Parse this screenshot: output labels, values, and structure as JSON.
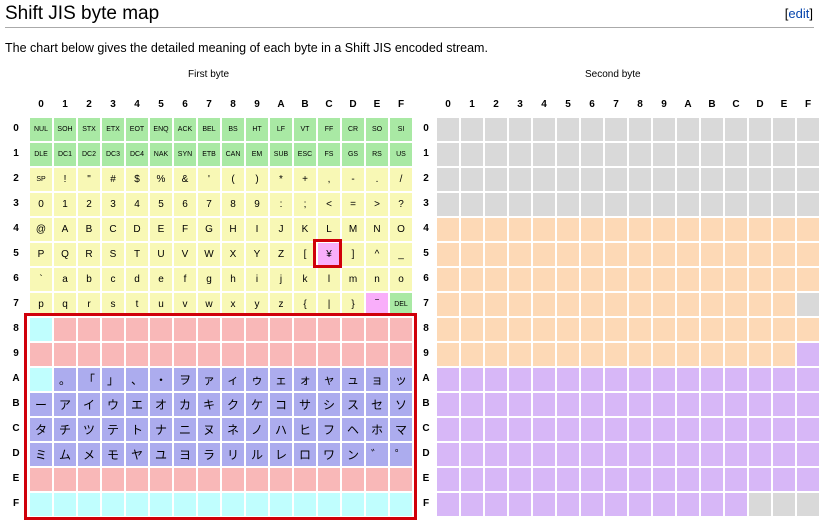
{
  "page": {
    "title": "Shift JIS byte map",
    "edit_open": "[",
    "edit_label": "edit",
    "edit_close": "]",
    "intro": "The chart below gives the detailed meaning of each byte in a Shift JIS encoded stream."
  },
  "first_byte": {
    "caption": "First byte",
    "col_headers": [
      "0",
      "1",
      "2",
      "3",
      "4",
      "5",
      "6",
      "7",
      "8",
      "9",
      "A",
      "B",
      "C",
      "D",
      "E",
      "F"
    ],
    "row_headers": [
      "0",
      "1",
      "2",
      "3",
      "4",
      "5",
      "6",
      "7",
      "8",
      "9",
      "A",
      "B",
      "C",
      "D",
      "E",
      "F"
    ],
    "rows": [
      {
        "cells": [
          "NUL",
          "SOH",
          "STX",
          "ETX",
          "EOT",
          "ENQ",
          "ACK",
          "BEL",
          "BS",
          "HT",
          "LF",
          "VT",
          "FF",
          "CR",
          "SO",
          "SI"
        ],
        "colors": "gggggggggggggggg"
      },
      {
        "cells": [
          "DLE",
          "DC1",
          "DC2",
          "DC3",
          "DC4",
          "NAK",
          "SYN",
          "ETB",
          "CAN",
          "EM",
          "SUB",
          "ESC",
          "FS",
          "GS",
          "RS",
          "US"
        ],
        "colors": "gggggggggggggggg"
      },
      {
        "cells": [
          "SP",
          "!",
          "\"",
          "#",
          "$",
          "%",
          "&",
          "'",
          "(",
          ")",
          "*",
          "+",
          ",",
          "-",
          ".",
          "/"
        ],
        "colors": "yyyyyyyyyyyyyyyy"
      },
      {
        "cells": [
          "0",
          "1",
          "2",
          "3",
          "4",
          "5",
          "6",
          "7",
          "8",
          "9",
          ":",
          ";",
          "<",
          "=",
          ">",
          "?"
        ],
        "colors": "yyyyyyyyyyyyyyyy"
      },
      {
        "cells": [
          "@",
          "A",
          "B",
          "C",
          "D",
          "E",
          "F",
          "G",
          "H",
          "I",
          "J",
          "K",
          "L",
          "M",
          "N",
          "O"
        ],
        "colors": "yyyyyyyyyyyyyyyy"
      },
      {
        "cells": [
          "P",
          "Q",
          "R",
          "S",
          "T",
          "U",
          "V",
          "W",
          "X",
          "Y",
          "Z",
          "[",
          "¥",
          "]",
          "^",
          "_"
        ],
        "colors": "yyyyyyyyyyyymyyy"
      },
      {
        "cells": [
          "`",
          "a",
          "b",
          "c",
          "d",
          "e",
          "f",
          "g",
          "h",
          "i",
          "j",
          "k",
          "l",
          "m",
          "n",
          "o"
        ],
        "colors": "yyyyyyyyyyyyyyyy"
      },
      {
        "cells": [
          "p",
          "q",
          "r",
          "s",
          "t",
          "u",
          "v",
          "w",
          "x",
          "y",
          "z",
          "{",
          "|",
          "}",
          "‾",
          "DEL"
        ],
        "colors": "yyyyyyyyyyyyyymg"
      },
      {
        "cells": [
          "",
          "",
          "",
          "",
          "",
          "",
          "",
          "",
          "",
          "",
          "",
          "",
          "",
          "",
          "",
          ""
        ],
        "colors": "crrrrrrrrrrrrrrr"
      },
      {
        "cells": [
          "",
          "",
          "",
          "",
          "",
          "",
          "",
          "",
          "",
          "",
          "",
          "",
          "",
          "",
          "",
          ""
        ],
        "colors": "rrrrrrrrrrrrrrrr"
      },
      {
        "cells": [
          "",
          "。",
          "「",
          "」",
          "、",
          "・",
          "ヲ",
          "ァ",
          "ィ",
          "ゥ",
          "ェ",
          "ォ",
          "ャ",
          "ュ",
          "ョ",
          "ッ"
        ],
        "colors": "cbbbbbbbbbbbbbbb"
      },
      {
        "cells": [
          "ー",
          "ア",
          "イ",
          "ウ",
          "エ",
          "オ",
          "カ",
          "キ",
          "ク",
          "ケ",
          "コ",
          "サ",
          "シ",
          "ス",
          "セ",
          "ソ"
        ],
        "colors": "bbbbbbbbbbbbbbbb"
      },
      {
        "cells": [
          "タ",
          "チ",
          "ツ",
          "テ",
          "ト",
          "ナ",
          "ニ",
          "ヌ",
          "ネ",
          "ノ",
          "ハ",
          "ヒ",
          "フ",
          "ヘ",
          "ホ",
          "マ"
        ],
        "colors": "bbbbbbbbbbbbbbbb"
      },
      {
        "cells": [
          "ミ",
          "ム",
          "メ",
          "モ",
          "ヤ",
          "ユ",
          "ヨ",
          "ラ",
          "リ",
          "ル",
          "レ",
          "ロ",
          "ワ",
          "ン",
          "゛",
          "゜"
        ],
        "colors": "bbbbbbbbbbbbbbbb"
      },
      {
        "cells": [
          "",
          "",
          "",
          "",
          "",
          "",
          "",
          "",
          "",
          "",
          "",
          "",
          "",
          "",
          "",
          ""
        ],
        "colors": "rrrrrrrrrrrrrrrr"
      },
      {
        "cells": [
          "",
          "",
          "",
          "",
          "",
          "",
          "",
          "",
          "",
          "",
          "",
          "",
          "",
          "",
          "",
          ""
        ],
        "colors": "cccccccccccccccc"
      }
    ]
  },
  "second_byte": {
    "caption": "Second byte",
    "col_headers": [
      "0",
      "1",
      "2",
      "3",
      "4",
      "5",
      "6",
      "7",
      "8",
      "9",
      "A",
      "B",
      "C",
      "D",
      "E",
      "F"
    ],
    "row_headers": [
      "0",
      "1",
      "2",
      "3",
      "4",
      "5",
      "6",
      "7",
      "8",
      "9",
      "A",
      "B",
      "C",
      "D",
      "E",
      "F"
    ],
    "rows": [
      "ssssssssssssssss",
      "ssssssssssssssss",
      "ssssssssssssssss",
      "ssssssssssssssss",
      "oooooooooooooooo",
      "oooooooooooooooo",
      "oooooooooooooooo",
      "ooooooooooooooos",
      "oooooooooooooooo",
      "ooooooooooooooop",
      "pppppppppppppppp",
      "pppppppppppppppp",
      "pppppppppppppppp",
      "pppppppppppppppp",
      "pppppppppppppppp",
      "pppppppppppppsss"
    ]
  },
  "palette": {
    "g": "#a9e9a4",
    "y": "#f8f8b5",
    "m": "#f9aefa",
    "r": "#f9b8b8",
    "c": "#c0fefe",
    "b": "#acacee",
    "s": "#d9d9d9",
    "o": "#fdd9b6",
    "p": "#d7b7f7",
    "highlight": "#d0000a",
    "link": "#0645ad"
  }
}
